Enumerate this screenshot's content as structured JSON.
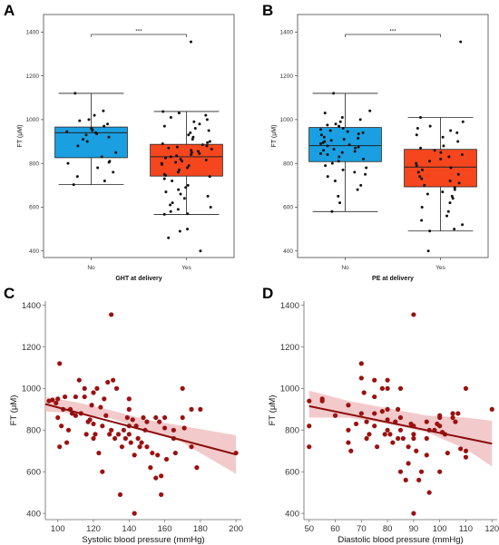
{
  "chart_data": [
    {
      "panel": "A",
      "type": "box",
      "xlabel": "GHT at delivery",
      "ylabel": "FT (μM)",
      "ylim": [
        370,
        1480
      ],
      "yticks": [
        400,
        600,
        800,
        1000,
        1200,
        1400
      ],
      "categories": [
        "No",
        "Yes"
      ],
      "colors": {
        "No": "#1a9fe0",
        "Yes": "#f5461e"
      },
      "significance": "***",
      "boxes": [
        {
          "label": "No",
          "min": 703,
          "q1": 826,
          "median": 940,
          "q3": 966,
          "max": 1120
        },
        {
          "label": "Yes",
          "min": 567,
          "q1": 742,
          "median": 830,
          "q3": 887,
          "max": 1037
        }
      ],
      "points": [
        [
          1120,
          1040,
          1020,
          1000,
          995,
          980,
          970,
          960,
          955,
          950,
          945,
          940,
          935,
          930,
          920,
          910,
          900,
          880,
          850,
          830,
          810,
          805,
          800,
          780,
          760,
          740,
          720,
          703
        ],
        [
          1355,
          1037,
          1030,
          1020,
          1010,
          1000,
          990,
          980,
          970,
          960,
          950,
          940,
          930,
          920,
          910,
          900,
          895,
          890,
          885,
          880,
          875,
          870,
          865,
          860,
          855,
          850,
          845,
          840,
          835,
          830,
          825,
          820,
          815,
          810,
          805,
          800,
          795,
          790,
          780,
          770,
          760,
          750,
          745,
          740,
          730,
          720,
          700,
          690,
          680,
          670,
          660,
          650,
          640,
          620,
          610,
          600,
          590,
          580,
          570,
          567,
          500,
          490,
          460,
          400
        ]
      ]
    },
    {
      "panel": "B",
      "type": "box",
      "xlabel": "PE at delivery",
      "ylabel": "FT (μM)",
      "ylim": [
        370,
        1480
      ],
      "yticks": [
        400,
        600,
        800,
        1000,
        1200,
        1400
      ],
      "categories": [
        "No",
        "Yes"
      ],
      "colors": {
        "No": "#1a9fe0",
        "Yes": "#f5461e"
      },
      "significance": "***",
      "boxes": [
        {
          "label": "No",
          "min": 580,
          "q1": 808,
          "median": 881,
          "q3": 964,
          "max": 1120
        },
        {
          "label": "Yes",
          "min": 491,
          "q1": 693,
          "median": 783,
          "q3": 864,
          "max": 1010
        }
      ],
      "points": [
        [
          1120,
          1040,
          1030,
          1010,
          1000,
          990,
          980,
          975,
          970,
          960,
          955,
          950,
          945,
          940,
          935,
          930,
          920,
          915,
          910,
          905,
          900,
          895,
          890,
          885,
          880,
          875,
          870,
          865,
          860,
          855,
          850,
          845,
          840,
          830,
          820,
          810,
          800,
          790,
          780,
          770,
          760,
          750,
          740,
          720,
          700,
          680,
          650,
          620,
          580
        ],
        [
          1355,
          1010,
          990,
          970,
          960,
          950,
          940,
          930,
          920,
          900,
          880,
          870,
          860,
          850,
          840,
          830,
          820,
          810,
          800,
          790,
          780,
          770,
          760,
          750,
          740,
          730,
          720,
          710,
          700,
          690,
          680,
          670,
          660,
          650,
          640,
          620,
          600,
          580,
          560,
          540,
          520,
          500,
          491,
          400
        ]
      ]
    },
    {
      "panel": "C",
      "type": "scatter",
      "xlabel": "Systolic blood pressure (mmHg)",
      "ylabel": "FT (μM)",
      "xlim": [
        93,
        203
      ],
      "ylim": [
        370,
        1420
      ],
      "xticks": [
        100,
        120,
        140,
        160,
        180,
        200
      ],
      "yticks": [
        400,
        600,
        800,
        1000,
        1200,
        1400
      ],
      "point_color": "#9b1111",
      "fit_line": {
        "x": [
          93,
          200
        ],
        "y": [
          925,
          683
        ],
        "color": "#8b0e0e"
      },
      "ci_band": {
        "x": [
          93,
          110,
          130,
          150,
          170,
          200
        ],
        "upper": [
          960,
          935,
          895,
          850,
          820,
          775
        ],
        "lower": [
          890,
          880,
          855,
          800,
          740,
          590
        ],
        "color": "#f1c1c2"
      },
      "points": [
        [
          95,
          940
        ],
        [
          97,
          945
        ],
        [
          99,
          930
        ],
        [
          100,
          950
        ],
        [
          100,
          860
        ],
        [
          101,
          1120
        ],
        [
          101,
          720
        ],
        [
          102,
          820
        ],
        [
          103,
          900
        ],
        [
          104,
          960
        ],
        [
          105,
          740
        ],
        [
          106,
          800
        ],
        [
          107,
          900
        ],
        [
          108,
          880
        ],
        [
          110,
          960
        ],
        [
          110,
          870
        ],
        [
          112,
          1040
        ],
        [
          113,
          880
        ],
        [
          115,
          960
        ],
        [
          115,
          1000
        ],
        [
          116,
          780
        ],
        [
          117,
          840
        ],
        [
          118,
          850
        ],
        [
          119,
          920
        ],
        [
          120,
          980
        ],
        [
          120,
          830
        ],
        [
          120,
          760
        ],
        [
          121,
          780
        ],
        [
          122,
          1000
        ],
        [
          123,
          690
        ],
        [
          124,
          910
        ],
        [
          125,
          820
        ],
        [
          125,
          600
        ],
        [
          126,
          950
        ],
        [
          127,
          870
        ],
        [
          128,
          1030
        ],
        [
          129,
          780
        ],
        [
          130,
          1355
        ],
        [
          130,
          800
        ],
        [
          131,
          1040
        ],
        [
          132,
          760
        ],
        [
          133,
          1000
        ],
        [
          134,
          780
        ],
        [
          135,
          490
        ],
        [
          136,
          720
        ],
        [
          137,
          800
        ],
        [
          138,
          760
        ],
        [
          139,
          860
        ],
        [
          140,
          950
        ],
        [
          140,
          900
        ],
        [
          140,
          820
        ],
        [
          140,
          780
        ],
        [
          141,
          740
        ],
        [
          142,
          850
        ],
        [
          143,
          680
        ],
        [
          143,
          400
        ],
        [
          144,
          820
        ],
        [
          145,
          760
        ],
        [
          146,
          720
        ],
        [
          147,
          740
        ],
        [
          148,
          860
        ],
        [
          149,
          800
        ],
        [
          150,
          840
        ],
        [
          150,
          720
        ],
        [
          152,
          620
        ],
        [
          153,
          690
        ],
        [
          155,
          860
        ],
        [
          155,
          570
        ],
        [
          156,
          680
        ],
        [
          157,
          840
        ],
        [
          158,
          580
        ],
        [
          158,
          490
        ],
        [
          160,
          860
        ],
        [
          160,
          810
        ],
        [
          161,
          660
        ],
        [
          165,
          800
        ],
        [
          165,
          760
        ],
        [
          166,
          690
        ],
        [
          170,
          1000
        ],
        [
          170,
          860
        ],
        [
          171,
          810
        ],
        [
          175,
          900
        ],
        [
          175,
          720
        ],
        [
          178,
          620
        ],
        [
          180,
          900
        ],
        [
          200,
          690
        ]
      ]
    },
    {
      "panel": "D",
      "type": "scatter",
      "xlabel": "Diastolic blood pressure (mmHg)",
      "ylabel": "FT (μM)",
      "xlim": [
        48,
        122
      ],
      "ylim": [
        370,
        1420
      ],
      "xticks": [
        50,
        60,
        70,
        80,
        90,
        100,
        110,
        120
      ],
      "yticks": [
        400,
        600,
        800,
        1000,
        1200,
        1400
      ],
      "point_color": "#9b1111",
      "fit_line": {
        "x": [
          50,
          120
        ],
        "y": [
          915,
          735
        ],
        "color": "#8b0e0e"
      },
      "ci_band": {
        "x": [
          50,
          65,
          80,
          95,
          110,
          120
        ],
        "upper": [
          990,
          940,
          905,
          870,
          860,
          845
        ],
        "lower": [
          860,
          860,
          830,
          790,
          710,
          625
        ],
        "color": "#f1c1c2"
      },
      "points": [
        [
          50,
          940
        ],
        [
          50,
          820
        ],
        [
          50,
          720
        ],
        [
          55,
          950
        ],
        [
          55,
          940
        ],
        [
          60,
          870
        ],
        [
          65,
          920
        ],
        [
          65,
          800
        ],
        [
          65,
          740
        ],
        [
          66,
          700
        ],
        [
          68,
          830
        ],
        [
          70,
          1120
        ],
        [
          70,
          1050
        ],
        [
          70,
          880
        ],
        [
          71,
          980
        ],
        [
          72,
          840
        ],
        [
          72,
          760
        ],
        [
          73,
          780
        ],
        [
          75,
          1040
        ],
        [
          75,
          960
        ],
        [
          75,
          880
        ],
        [
          75,
          820
        ],
        [
          76,
          720
        ],
        [
          78,
          1000
        ],
        [
          78,
          890
        ],
        [
          79,
          780
        ],
        [
          80,
          1040
        ],
        [
          80,
          1000
        ],
        [
          80,
          900
        ],
        [
          80,
          850
        ],
        [
          80,
          800
        ],
        [
          81,
          780
        ],
        [
          82,
          740
        ],
        [
          83,
          840
        ],
        [
          84,
          900
        ],
        [
          84,
          760
        ],
        [
          85,
          1000
        ],
        [
          85,
          860
        ],
        [
          85,
          800
        ],
        [
          85,
          600
        ],
        [
          86,
          760
        ],
        [
          87,
          560
        ],
        [
          88,
          640
        ],
        [
          88,
          720
        ],
        [
          89,
          830
        ],
        [
          90,
          1355
        ],
        [
          90,
          820
        ],
        [
          90,
          780
        ],
        [
          90,
          760
        ],
        [
          90,
          400
        ],
        [
          91,
          700
        ],
        [
          92,
          560
        ],
        [
          93,
          600
        ],
        [
          95,
          840
        ],
        [
          95,
          760
        ],
        [
          95,
          680
        ],
        [
          96,
          800
        ],
        [
          96,
          500
        ],
        [
          98,
          800
        ],
        [
          99,
          830
        ],
        [
          100,
          870
        ],
        [
          100,
          860
        ],
        [
          100,
          820
        ],
        [
          100,
          600
        ],
        [
          101,
          790
        ],
        [
          102,
          780
        ],
        [
          103,
          690
        ],
        [
          105,
          880
        ],
        [
          105,
          860
        ],
        [
          106,
          840
        ],
        [
          107,
          880
        ],
        [
          108,
          710
        ],
        [
          110,
          1000
        ],
        [
          110,
          700
        ],
        [
          110,
          670
        ],
        [
          120,
          900
        ]
      ]
    }
  ]
}
